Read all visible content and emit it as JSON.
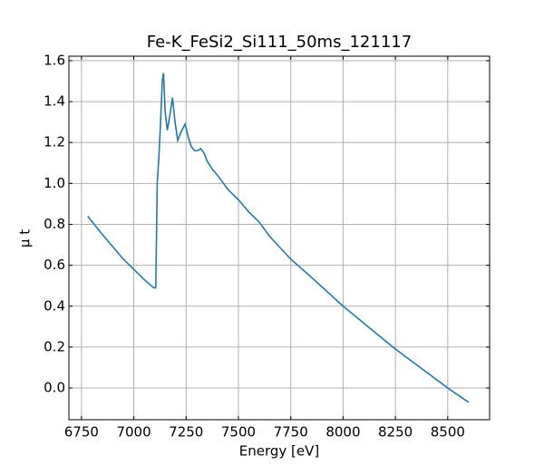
{
  "chart_data": {
    "type": "line",
    "title": "Fe-K_FeSi2_Si111_50ms_121117",
    "x_label": "Energy [eV]",
    "y_label": "μ t",
    "series": [
      {
        "name": "μ t",
        "color": "#1f77b4",
        "x": [
          6780,
          6850,
          6950,
          7050,
          7095,
          7105,
          7112,
          7120,
          7128,
          7136,
          7142,
          7150,
          7160,
          7172,
          7185,
          7197,
          7210,
          7225,
          7245,
          7262,
          7275,
          7290,
          7305,
          7320,
          7335,
          7350,
          7375,
          7400,
          7450,
          7500,
          7550,
          7580,
          7600,
          7650,
          7750,
          7850,
          8000,
          8250,
          8500,
          8600
        ],
        "values": [
          0.84,
          0.75,
          0.63,
          0.53,
          0.49,
          0.49,
          1.0,
          1.13,
          1.3,
          1.5,
          1.54,
          1.35,
          1.26,
          1.33,
          1.42,
          1.3,
          1.21,
          1.25,
          1.29,
          1.22,
          1.18,
          1.16,
          1.16,
          1.17,
          1.15,
          1.11,
          1.07,
          1.04,
          0.97,
          0.92,
          0.86,
          0.83,
          0.81,
          0.74,
          0.63,
          0.54,
          0.4,
          0.19,
          0.0,
          -0.07
        ]
      }
    ],
    "xlim": [
      6690,
      8700
    ],
    "xticks": [
      6750,
      7000,
      7250,
      7500,
      7750,
      8000,
      8250,
      8500
    ],
    "ylim": [
      -0.155,
      1.622
    ],
    "yticks": [
      {
        "value": 0,
        "label": "0.0"
      },
      {
        "value": 0.2,
        "label": "0.2"
      },
      {
        "value": 0.4,
        "label": "0.4"
      },
      {
        "value": 0.6,
        "label": "0.6"
      },
      {
        "value": 0.8,
        "label": "0.8"
      },
      {
        "value": 1.0,
        "label": "1.0"
      },
      {
        "value": 1.2,
        "label": "1.2"
      },
      {
        "value": 1.4,
        "label": "1.4"
      },
      {
        "value": 1.6,
        "label": "1.6"
      }
    ],
    "grid": true
  }
}
